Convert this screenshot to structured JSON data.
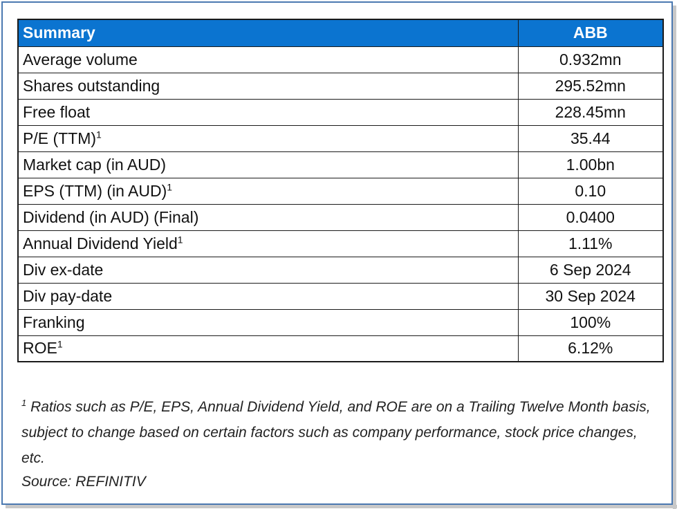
{
  "table": {
    "header": {
      "label": "Summary",
      "value": "ABB"
    },
    "rows": [
      {
        "label": "Average volume",
        "sup": "",
        "value": "0.932mn"
      },
      {
        "label": "Shares outstanding",
        "sup": "",
        "value": "295.52mn"
      },
      {
        "label": "Free float",
        "sup": "",
        "value": "228.45mn"
      },
      {
        "label": "P/E (TTM)",
        "sup": "1",
        "value": "35.44"
      },
      {
        "label": "Market cap (in AUD)",
        "sup": "",
        "value": "1.00bn"
      },
      {
        "label": "EPS (TTM) (in AUD)",
        "sup": "1",
        "value": "0.10"
      },
      {
        "label": "Dividend (in AUD) (Final)",
        "sup": "",
        "value": "0.0400"
      },
      {
        "label": "Annual Dividend Yield",
        "sup": "1",
        "value": "1.11%"
      },
      {
        "label": "Div ex-date",
        "sup": "",
        "value": "6 Sep 2024"
      },
      {
        "label": "Div pay-date",
        "sup": "",
        "value": "30 Sep 2024"
      },
      {
        "label": "Franking",
        "sup": "",
        "value": "100%"
      },
      {
        "label": "ROE",
        "sup": "1",
        "value": "6.12%"
      }
    ]
  },
  "footnote": {
    "marker": "1",
    "text": "Ratios such as P/E, EPS, Annual Dividend Yield, and ROE are on a Trailing Twelve Month basis, subject to change based on certain factors such as company performance, stock price changes, etc."
  },
  "source": "Source: REFINITIV",
  "colors": {
    "header_bg": "#0b74d0",
    "header_text": "#ffffff",
    "frame_border": "#4a78b0"
  }
}
